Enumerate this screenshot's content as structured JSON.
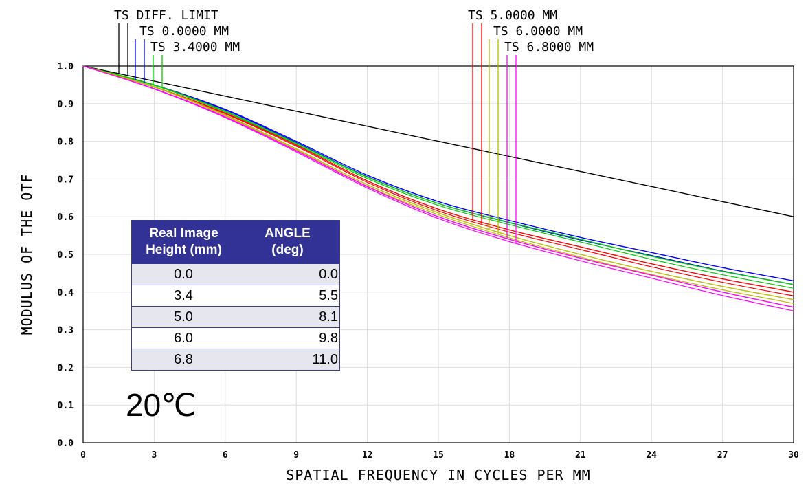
{
  "chart_data": {
    "type": "line",
    "xlabel": "SPATIAL FREQUENCY IN CYCLES PER MM",
    "ylabel": "MODULUS OF THE OTF",
    "xlim": [
      0,
      30
    ],
    "ylim": [
      0,
      1
    ],
    "x_ticks": [
      "0",
      "3",
      "6",
      "9",
      "12",
      "15",
      "18",
      "21",
      "24",
      "27",
      "30"
    ],
    "y_ticks": [
      "0.0",
      "0.1",
      "0.2",
      "0.3",
      "0.4",
      "0.5",
      "0.6",
      "0.7",
      "0.8",
      "0.9",
      "1.0"
    ],
    "grid": true,
    "x": [
      0,
      3,
      6,
      9,
      12,
      15,
      18,
      21,
      24,
      27,
      30
    ],
    "series": [
      {
        "name": "TS DIFF. LIMIT",
        "color": "#000000",
        "values": [
          1.0,
          0.96,
          0.92,
          0.88,
          0.84,
          0.8,
          0.76,
          0.72,
          0.68,
          0.64,
          0.6
        ]
      },
      {
        "name": "TS 0.0000 MM",
        "color": "#0000ff",
        "values": [
          1.0,
          0.95,
          0.885,
          0.8,
          0.71,
          0.64,
          0.59,
          0.545,
          0.505,
          0.465,
          0.43
        ]
      },
      {
        "name": "TS 3.4000 MM",
        "color": "#00cc00",
        "values": [
          1.0,
          0.95,
          0.88,
          0.795,
          0.705,
          0.635,
          0.585,
          0.54,
          0.495,
          0.455,
          0.42
        ]
      },
      {
        "name": "TS 5.0000 MM",
        "color": "#ff0000",
        "values": [
          1.0,
          0.945,
          0.875,
          0.79,
          0.695,
          0.62,
          0.565,
          0.52,
          0.475,
          0.435,
          0.4
        ]
      },
      {
        "name": "TS 6.0000 MM",
        "color": "#bbbb00",
        "values": [
          1.0,
          0.945,
          0.87,
          0.78,
          0.685,
          0.61,
          0.55,
          0.5,
          0.455,
          0.415,
          0.38
        ]
      },
      {
        "name": "TS 6.8000 MM",
        "color": "#ff00ff",
        "values": [
          1.0,
          0.94,
          0.865,
          0.775,
          0.68,
          0.6,
          0.54,
          0.49,
          0.445,
          0.4,
          0.36
        ]
      }
    ],
    "legend_groups": [
      {
        "labels": [
          "TS DIFF. LIMIT",
          "TS 0.0000 MM",
          "TS 3.4000 MM"
        ]
      },
      {
        "labels": [
          "TS 5.0000 MM",
          "TS 6.0000 MM",
          "TS 6.8000 MM"
        ]
      }
    ]
  },
  "table": {
    "header": [
      "Real Image\nHeight (mm)",
      "ANGLE\n(deg)"
    ],
    "header_col1_line1": "Real Image",
    "header_col1_line2": "Height (mm)",
    "header_col2_line1": "ANGLE",
    "header_col2_line2": "(deg)",
    "rows": [
      {
        "height": "0.0",
        "angle": "0.0"
      },
      {
        "height": "3.4",
        "angle": "5.5"
      },
      {
        "height": "5.0",
        "angle": "8.1"
      },
      {
        "height": "6.0",
        "angle": "9.8"
      },
      {
        "height": "6.8",
        "angle": "11.0"
      }
    ]
  },
  "temperature_label": "20℃"
}
